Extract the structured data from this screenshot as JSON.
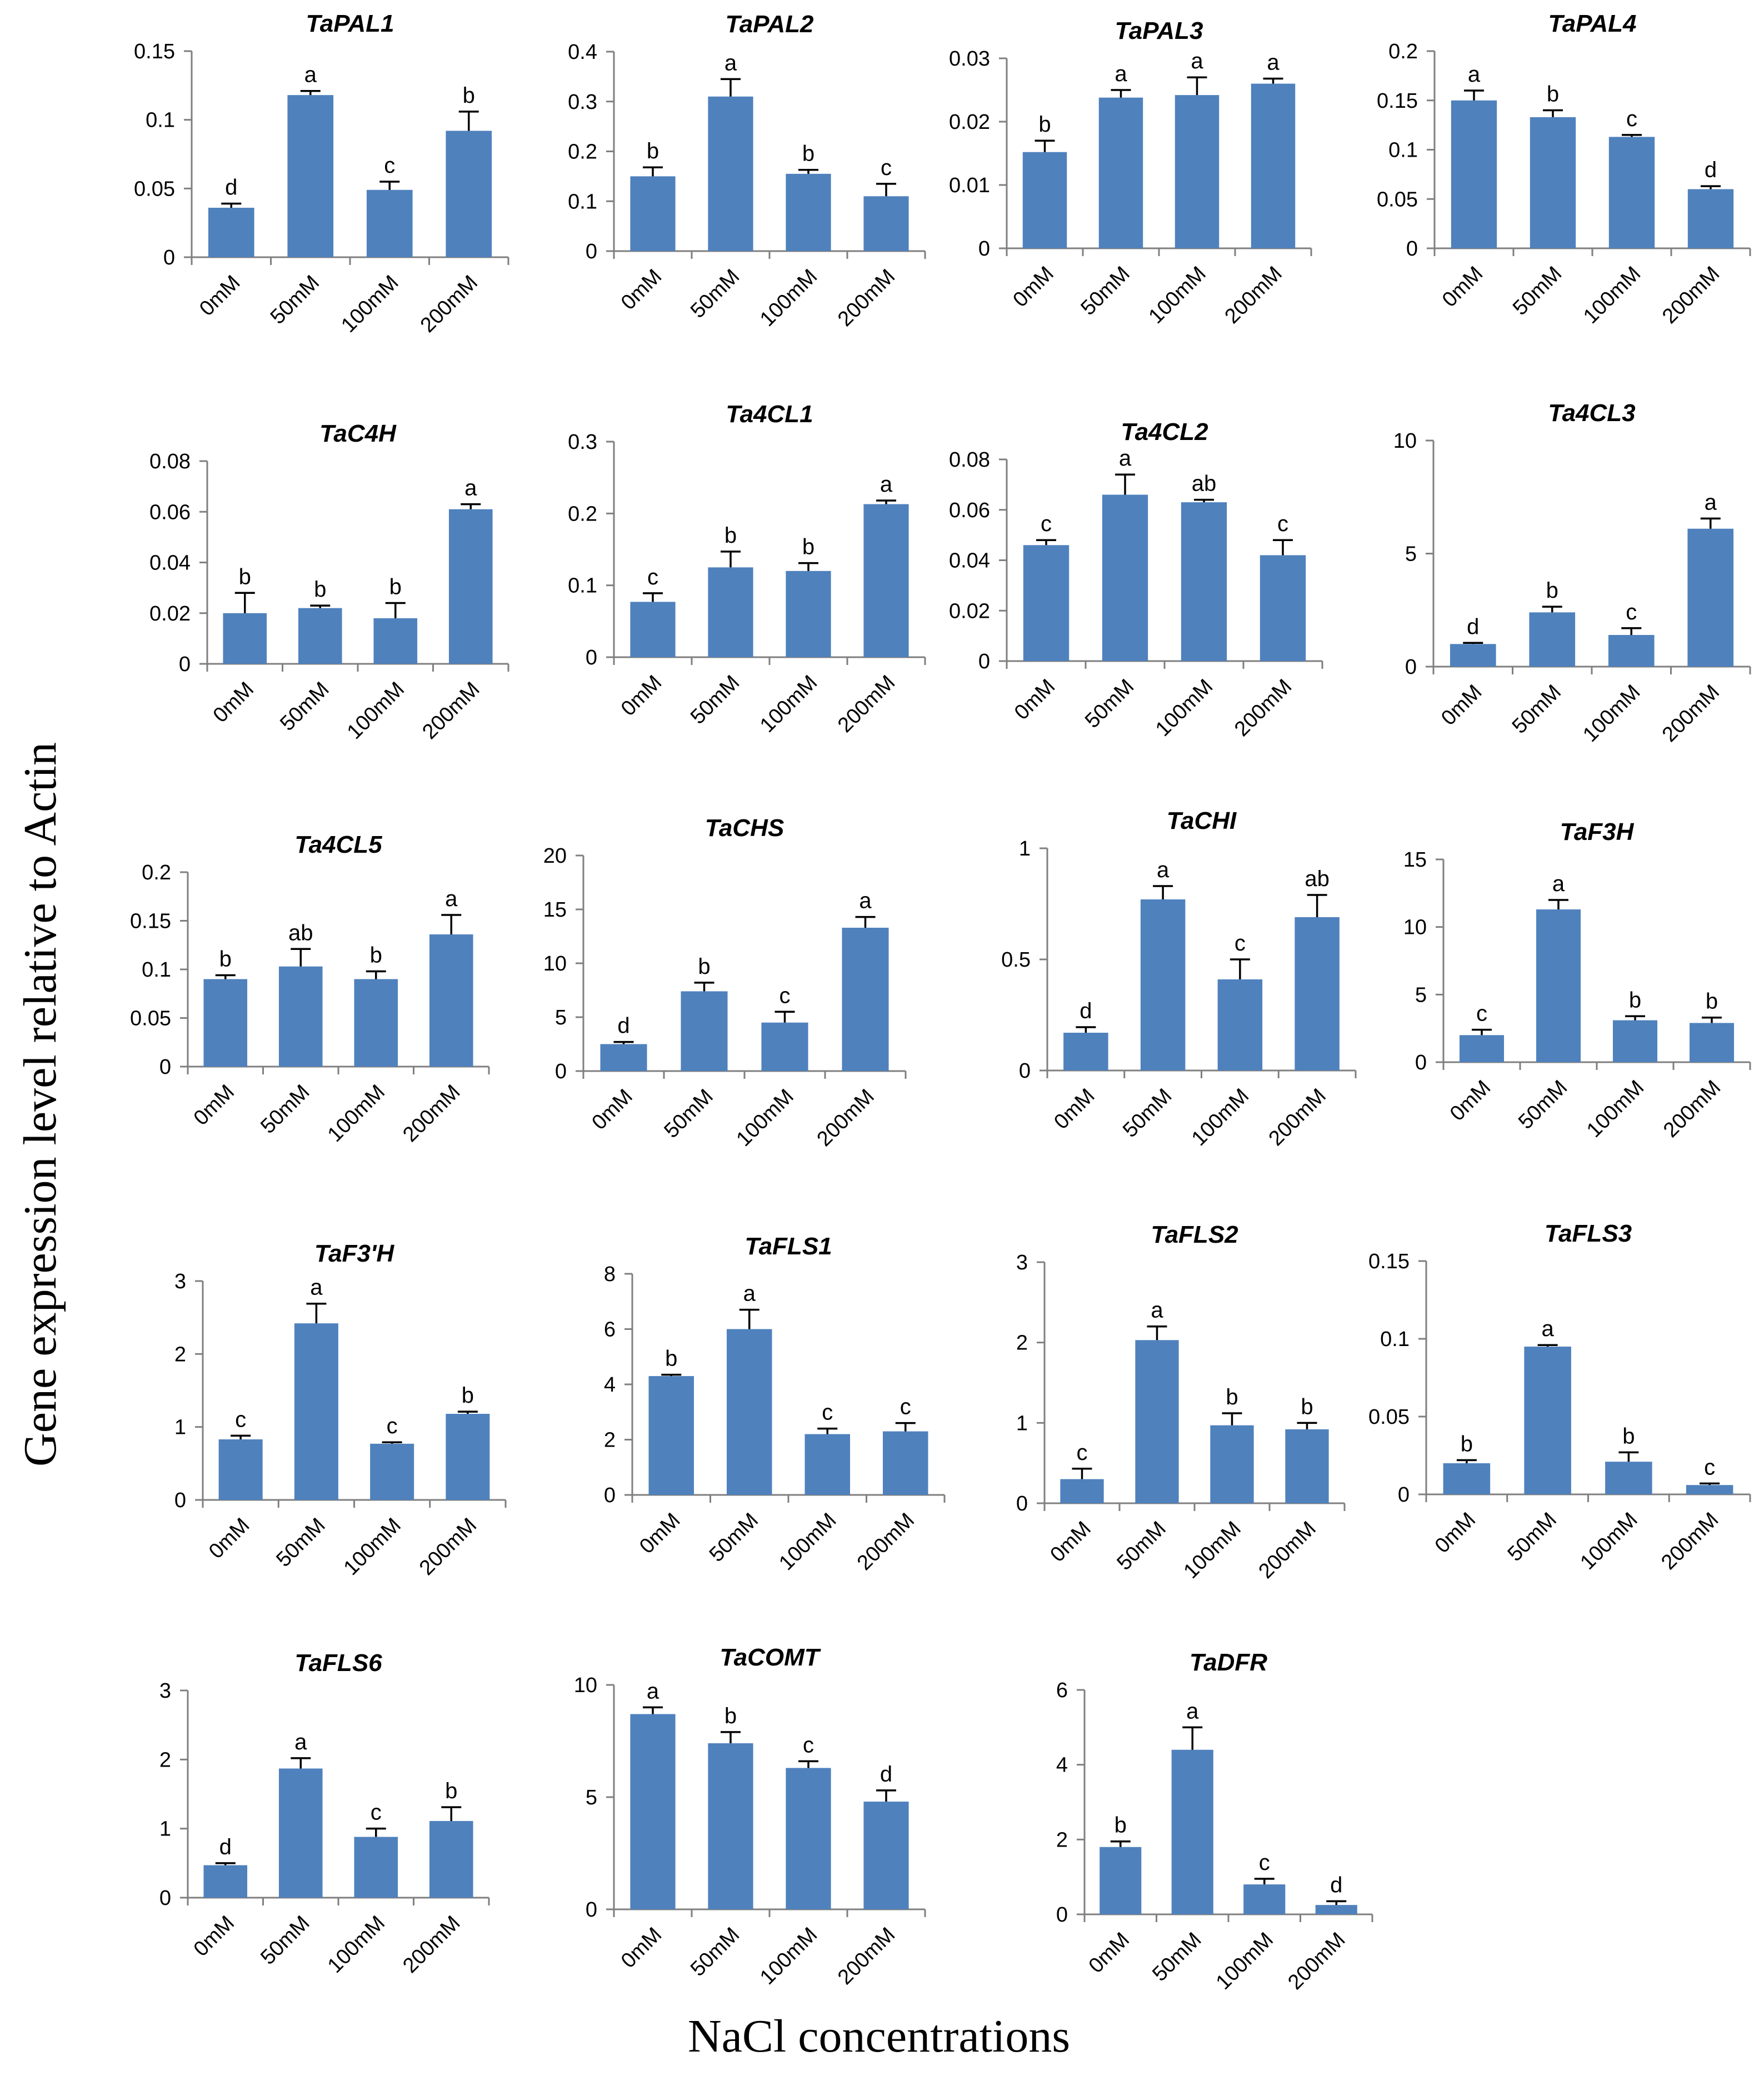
{
  "figure": {
    "ylabel": "Gene expression level relative to Actin",
    "xlabel": "NaCl concentrations",
    "bar_color": "#4f81bd"
  },
  "chart_data": [
    {
      "type": "bar",
      "title": "TaPAL1",
      "categories": [
        "0mM",
        "50mM",
        "100mM",
        "200mM"
      ],
      "values": [
        0.036,
        0.118,
        0.049,
        0.092
      ],
      "errors": [
        0.003,
        0.003,
        0.006,
        0.014
      ],
      "sig": [
        "d",
        "a",
        "c",
        "b"
      ],
      "ylim": [
        0,
        0.15
      ],
      "yticks": [
        "0",
        "0.05",
        "0.1",
        "0.15"
      ]
    },
    {
      "type": "bar",
      "title": "TaPAL2",
      "categories": [
        "0mM",
        "50mM",
        "100mM",
        "200mM"
      ],
      "values": [
        0.15,
        0.31,
        0.155,
        0.11
      ],
      "errors": [
        0.018,
        0.035,
        0.008,
        0.025
      ],
      "sig": [
        "b",
        "a",
        "b",
        "c"
      ],
      "ylim": [
        0,
        0.4
      ],
      "yticks": [
        "0",
        "0.1",
        "0.2",
        "0.3",
        "0.4"
      ]
    },
    {
      "type": "bar",
      "title": "TaPAL3",
      "categories": [
        "0mM",
        "50mM",
        "100mM",
        "200mM"
      ],
      "values": [
        0.0152,
        0.0238,
        0.0242,
        0.026
      ],
      "errors": [
        0.0018,
        0.0012,
        0.0028,
        0.0008
      ],
      "sig": [
        "b",
        "a",
        "a",
        "a"
      ],
      "ylim": [
        0,
        0.03
      ],
      "yticks": [
        "0",
        "0.01",
        "0.02",
        "0.03"
      ]
    },
    {
      "type": "bar",
      "title": "TaPAL4",
      "categories": [
        "0mM",
        "50mM",
        "100mM",
        "200mM"
      ],
      "values": [
        0.15,
        0.133,
        0.113,
        0.06
      ],
      "errors": [
        0.01,
        0.007,
        0.002,
        0.003
      ],
      "sig": [
        "a",
        "b",
        "c",
        "d"
      ],
      "ylim": [
        0,
        0.2
      ],
      "yticks": [
        "0",
        "0.05",
        "0.1",
        "0.15",
        "0.2"
      ]
    },
    {
      "type": "bar",
      "title": "TaC4H",
      "categories": [
        "0mM",
        "50mM",
        "100mM",
        "200mM"
      ],
      "values": [
        0.02,
        0.022,
        0.018,
        0.061
      ],
      "errors": [
        0.008,
        0.001,
        0.006,
        0.002
      ],
      "sig": [
        "b",
        "b",
        "b",
        "a"
      ],
      "ylim": [
        0,
        0.08
      ],
      "yticks": [
        "0",
        "0.02",
        "0.04",
        "0.06",
        "0.08"
      ]
    },
    {
      "type": "bar",
      "title": "Ta4CL1",
      "categories": [
        "0mM",
        "50mM",
        "100mM",
        "200mM"
      ],
      "values": [
        0.077,
        0.125,
        0.12,
        0.213
      ],
      "errors": [
        0.012,
        0.022,
        0.011,
        0.005
      ],
      "sig": [
        "c",
        "b",
        "b",
        "a"
      ],
      "ylim": [
        0,
        0.3
      ],
      "yticks": [
        "0",
        "0.1",
        "0.2",
        "0.3"
      ]
    },
    {
      "type": "bar",
      "title": "Ta4CL2",
      "categories": [
        "0mM",
        "50mM",
        "100mM",
        "200mM"
      ],
      "values": [
        0.046,
        0.066,
        0.063,
        0.042
      ],
      "errors": [
        0.002,
        0.008,
        0.001,
        0.006
      ],
      "sig": [
        "c",
        "a",
        "ab",
        "c"
      ],
      "ylim": [
        0,
        0.08
      ],
      "yticks": [
        "0",
        "0.02",
        "0.04",
        "0.06",
        "0.08"
      ]
    },
    {
      "type": "bar",
      "title": "Ta4CL3",
      "categories": [
        "0mM",
        "50mM",
        "100mM",
        "200mM"
      ],
      "values": [
        1.0,
        2.4,
        1.4,
        6.1
      ],
      "errors": [
        0.05,
        0.25,
        0.3,
        0.45
      ],
      "sig": [
        "d",
        "b",
        "c",
        "a"
      ],
      "ylim": [
        0,
        10
      ],
      "yticks": [
        "0",
        "5",
        "10"
      ]
    },
    {
      "type": "bar",
      "title": "Ta4CL5",
      "categories": [
        "0mM",
        "50mM",
        "100mM",
        "200mM"
      ],
      "values": [
        0.09,
        0.103,
        0.09,
        0.136
      ],
      "errors": [
        0.004,
        0.018,
        0.008,
        0.02
      ],
      "sig": [
        "b",
        "ab",
        "b",
        "a"
      ],
      "ylim": [
        0,
        0.2
      ],
      "yticks": [
        "0",
        "0.05",
        "0.1",
        "0.15",
        "0.2"
      ]
    },
    {
      "type": "bar",
      "title": "TaCHS",
      "categories": [
        "0mM",
        "50mM",
        "100mM",
        "200mM"
      ],
      "values": [
        2.5,
        7.4,
        4.5,
        13.3
      ],
      "errors": [
        0.2,
        0.8,
        1.0,
        1.0
      ],
      "sig": [
        "d",
        "b",
        "c",
        "a"
      ],
      "ylim": [
        0,
        20
      ],
      "yticks": [
        "0",
        "5",
        "10",
        "15",
        "20"
      ]
    },
    {
      "type": "bar",
      "title": "TaCHI",
      "categories": [
        "0mM",
        "50mM",
        "100mM",
        "200mM"
      ],
      "values": [
        0.17,
        0.77,
        0.41,
        0.69
      ],
      "errors": [
        0.025,
        0.06,
        0.09,
        0.1
      ],
      "sig": [
        "d",
        "a",
        "c",
        "ab"
      ],
      "ylim": [
        0,
        1
      ],
      "yticks": [
        "0",
        "0.5",
        "1"
      ]
    },
    {
      "type": "bar",
      "title": "TaF3H",
      "categories": [
        "0mM",
        "50mM",
        "100mM",
        "200mM"
      ],
      "values": [
        2.0,
        11.3,
        3.1,
        2.9
      ],
      "errors": [
        0.4,
        0.7,
        0.3,
        0.4
      ],
      "sig": [
        "c",
        "a",
        "b",
        "b"
      ],
      "ylim": [
        0,
        15
      ],
      "yticks": [
        "0",
        "5",
        "10",
        "15"
      ]
    },
    {
      "type": "bar",
      "title": "TaF3'H",
      "categories": [
        "0mM",
        "50mM",
        "100mM",
        "200mM"
      ],
      "values": [
        0.83,
        2.42,
        0.77,
        1.18
      ],
      "errors": [
        0.05,
        0.27,
        0.02,
        0.03
      ],
      "sig": [
        "c",
        "a",
        "c",
        "b"
      ],
      "ylim": [
        0,
        3
      ],
      "yticks": [
        "0",
        "1",
        "2",
        "3"
      ]
    },
    {
      "type": "bar",
      "title": "TaFLS1",
      "categories": [
        "0mM",
        "50mM",
        "100mM",
        "200mM"
      ],
      "values": [
        4.3,
        6.0,
        2.2,
        2.3
      ],
      "errors": [
        0.05,
        0.7,
        0.2,
        0.3
      ],
      "sig": [
        "b",
        "a",
        "c",
        "c"
      ],
      "ylim": [
        0,
        8
      ],
      "yticks": [
        "0",
        "2",
        "4",
        "6",
        "8"
      ]
    },
    {
      "type": "bar",
      "title": "TaFLS2",
      "categories": [
        "0mM",
        "50mM",
        "100mM",
        "200mM"
      ],
      "values": [
        0.3,
        2.03,
        0.97,
        0.92
      ],
      "errors": [
        0.13,
        0.17,
        0.15,
        0.08
      ],
      "sig": [
        "c",
        "a",
        "b",
        "b"
      ],
      "ylim": [
        0,
        3
      ],
      "yticks": [
        "0",
        "1",
        "2",
        "3"
      ]
    },
    {
      "type": "bar",
      "title": "TaFLS3",
      "categories": [
        "0mM",
        "50mM",
        "100mM",
        "200mM"
      ],
      "values": [
        0.02,
        0.095,
        0.021,
        0.006
      ],
      "errors": [
        0.002,
        0.001,
        0.006,
        0.001
      ],
      "sig": [
        "b",
        "a",
        "b",
        "c"
      ],
      "ylim": [
        0,
        0.15
      ],
      "yticks": [
        "0",
        "0.05",
        "0.1",
        "0.15"
      ]
    },
    {
      "type": "bar",
      "title": "TaFLS6",
      "categories": [
        "0mM",
        "50mM",
        "100mM",
        "200mM"
      ],
      "values": [
        0.47,
        1.87,
        0.88,
        1.11
      ],
      "errors": [
        0.03,
        0.15,
        0.12,
        0.2
      ],
      "sig": [
        "d",
        "a",
        "c",
        "b"
      ],
      "ylim": [
        0,
        3
      ],
      "yticks": [
        "0",
        "1",
        "2",
        "3"
      ]
    },
    {
      "type": "bar",
      "title": "TaCOMT",
      "categories": [
        "0mM",
        "50mM",
        "100mM",
        "200mM"
      ],
      "values": [
        8.7,
        7.4,
        6.3,
        4.8
      ],
      "errors": [
        0.3,
        0.5,
        0.3,
        0.5
      ],
      "sig": [
        "a",
        "b",
        "c",
        "d"
      ],
      "ylim": [
        0,
        10
      ],
      "yticks": [
        "0",
        "5",
        "10"
      ]
    },
    {
      "type": "bar",
      "title": "TaDFR",
      "categories": [
        "0mM",
        "50mM",
        "100mM",
        "200mM"
      ],
      "values": [
        1.8,
        4.4,
        0.8,
        0.25
      ],
      "errors": [
        0.15,
        0.6,
        0.15,
        0.1
      ],
      "sig": [
        "b",
        "a",
        "c",
        "d"
      ],
      "ylim": [
        0,
        6
      ],
      "yticks": [
        "0",
        "2",
        "4",
        "6"
      ]
    }
  ]
}
